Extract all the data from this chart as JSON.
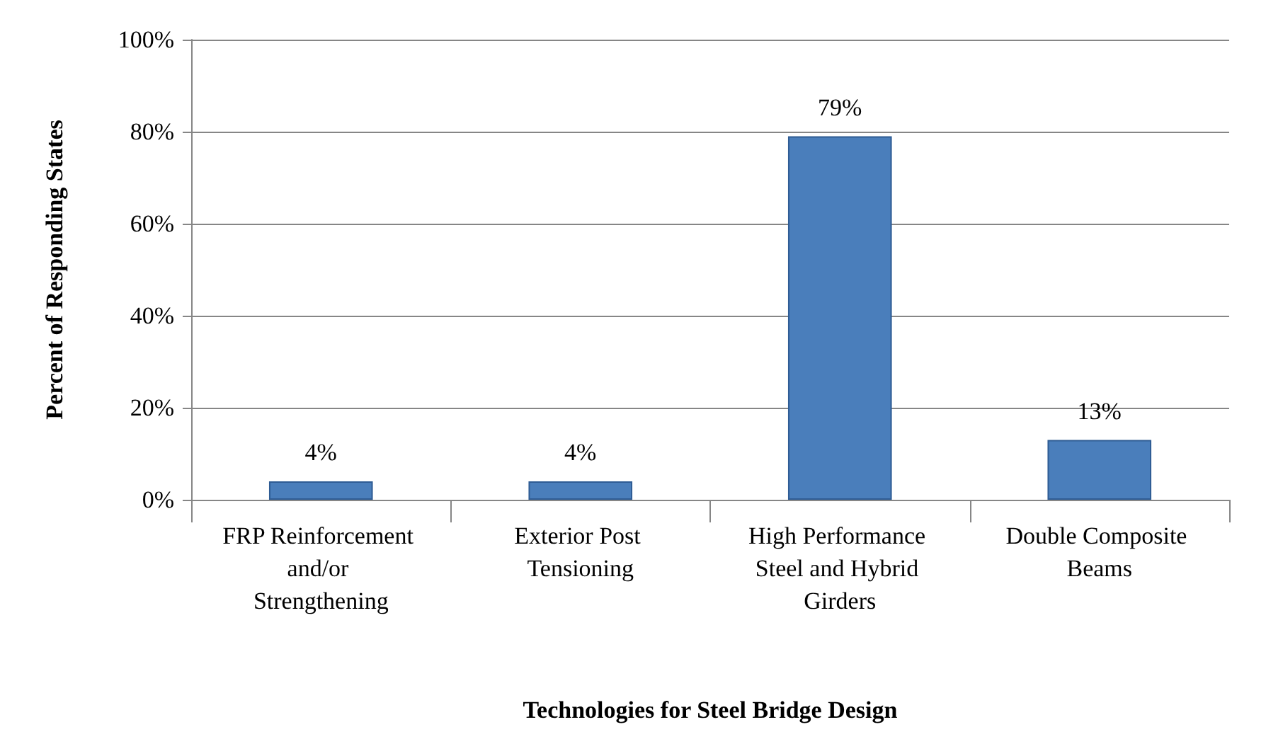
{
  "chart_data": {
    "type": "bar",
    "xlabel": "Technologies for Steel Bridge Design",
    "ylabel": "Percent of Responding States",
    "categories": [
      "FRP Reinforcement and/or Strengthening",
      "Exterior Post Tensioning",
      "High Performance Steel and Hybrid Girders",
      "Double Composite Beams"
    ],
    "values": [
      4,
      4,
      79,
      13
    ],
    "value_labels": [
      "4%",
      "4%",
      "79%",
      "13%"
    ],
    "color": "#4a7ebb",
    "ylim": [
      0,
      100
    ],
    "yticks": [
      {
        "value": 0,
        "label": "0%"
      },
      {
        "value": 20,
        "label": "20%"
      },
      {
        "value": 40,
        "label": "40%"
      },
      {
        "value": 60,
        "label": "60%"
      },
      {
        "value": 80,
        "label": "80%"
      },
      {
        "value": 100,
        "label": "100%"
      }
    ],
    "grid": "y"
  }
}
